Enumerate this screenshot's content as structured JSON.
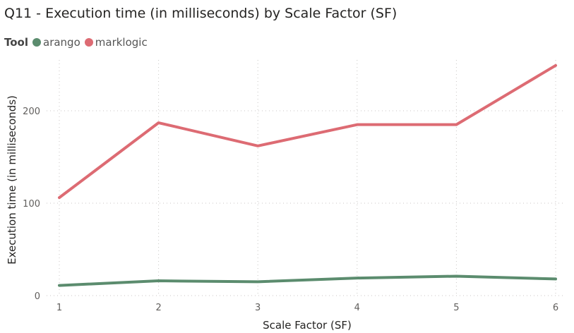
{
  "chart_data": {
    "type": "line",
    "title": "Q11 - Execution time (in milliseconds) by Scale Factor (SF)",
    "legend_title": "Tool",
    "xlabel": "Scale Factor (SF)",
    "ylabel": "Execution time (in milliseconds)",
    "x": [
      1,
      2,
      3,
      4,
      5,
      6
    ],
    "x_ticks": [
      "1",
      "2",
      "3",
      "4",
      "5",
      "6"
    ],
    "y_ticks": [
      "0",
      "100",
      "200"
    ],
    "y_tick_values": [
      0,
      100,
      200
    ],
    "ylim": [
      0,
      250
    ],
    "grid": true,
    "legend_position": "top-left",
    "series": [
      {
        "name": "arango",
        "color": "#5b8c6e",
        "values": [
          11,
          16,
          15,
          19,
          21,
          18
        ]
      },
      {
        "name": "marklogic",
        "color": "#dd6b73",
        "values": [
          106,
          187,
          162,
          185,
          185,
          249
        ]
      }
    ]
  }
}
